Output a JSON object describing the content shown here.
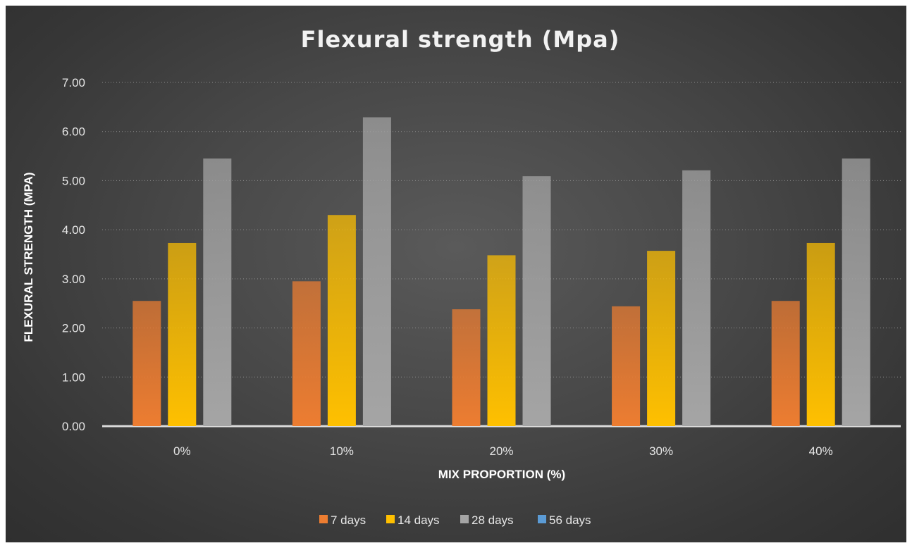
{
  "chart_data": {
    "type": "bar",
    "title": "Flexural strength (Mpa)",
    "xlabel": "MIX PROPORTION (%)",
    "ylabel": "FLEXURAL STRENGTH (MPA)",
    "categories": [
      "0%",
      "10%",
      "20%",
      "30%",
      "40%"
    ],
    "ylim": [
      0,
      7
    ],
    "ytick_step": 1,
    "ytick_labels": [
      "0.00",
      "1.00",
      "2.00",
      "3.00",
      "4.00",
      "5.00",
      "6.00",
      "7.00"
    ],
    "grid": true,
    "legend_position": "bottom",
    "series": [
      {
        "name": "7 days",
        "values": [
          2.55,
          2.95,
          2.38,
          2.44,
          2.55
        ],
        "color": "#ED7D31"
      },
      {
        "name": "14 days",
        "values": [
          3.73,
          4.3,
          3.48,
          3.57,
          3.73
        ],
        "color": "#FFC000"
      },
      {
        "name": "28 days",
        "values": [
          5.45,
          6.29,
          5.09,
          5.21,
          5.45
        ],
        "color": "#A5A5A5"
      },
      {
        "name": "56 days",
        "values": [
          null,
          null,
          null,
          null,
          null
        ],
        "color": "#5B9BD5"
      }
    ],
    "background": "#404040"
  }
}
